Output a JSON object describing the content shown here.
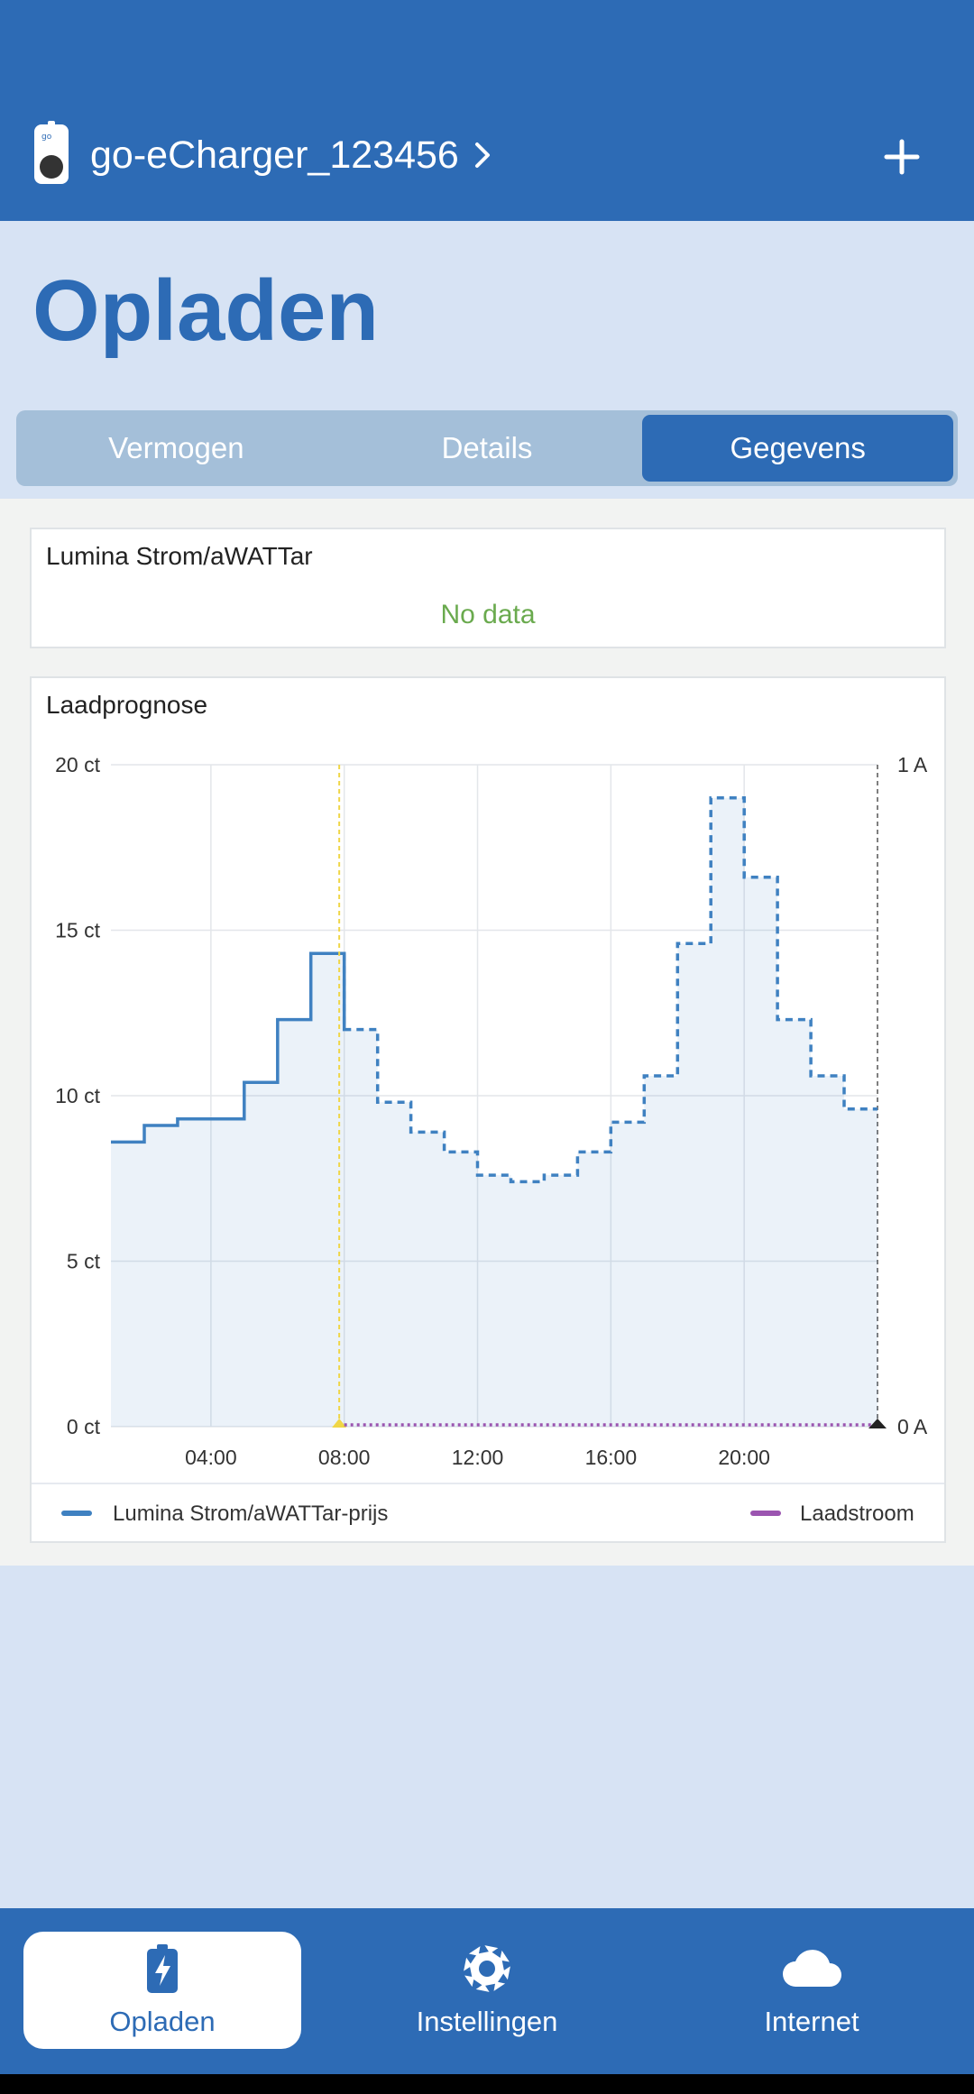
{
  "header": {
    "device_name": "go-eCharger_123456",
    "device_icon": "charger-icon",
    "add_icon": "plus-icon"
  },
  "page_title": "Opladen",
  "tabs": [
    {
      "label": "Vermogen",
      "active": false
    },
    {
      "label": "Details",
      "active": false
    },
    {
      "label": "Gegevens",
      "active": true
    }
  ],
  "price_card": {
    "title": "Lumina Strom/aWATTar",
    "status": "No data"
  },
  "forecast_card": {
    "title": "Laadprognose"
  },
  "chart_data": {
    "type": "line",
    "step": true,
    "x_tick_labels": [
      "04:00",
      "08:00",
      "12:00",
      "16:00",
      "20:00"
    ],
    "y_left": {
      "ticks": [
        "0 ct",
        "5 ct",
        "10 ct",
        "15 ct",
        "20 ct"
      ],
      "ylim": [
        0,
        20
      ],
      "unit": "ct"
    },
    "y_right": {
      "ticks": [
        "0 A",
        "1 A"
      ],
      "ylim": [
        0,
        1
      ],
      "unit": "A"
    },
    "xlim_hours": [
      1.0,
      24.0
    ],
    "current_time_hour": 7.85,
    "series": [
      {
        "name": "Lumina Strom/aWATTar-prijs",
        "color": "#3f81c1",
        "axis": "left",
        "x": [
          1,
          2,
          3,
          4,
          5,
          6,
          7,
          8,
          9,
          10,
          11,
          12,
          13,
          14,
          15,
          16,
          17,
          18,
          19,
          20,
          21,
          22,
          23,
          24
        ],
        "values": [
          8.6,
          9.1,
          9.3,
          9.3,
          10.4,
          12.3,
          14.3,
          12.0,
          9.8,
          8.9,
          8.3,
          7.6,
          7.4,
          7.6,
          8.3,
          9.2,
          10.6,
          14.6,
          19.0,
          16.6,
          12.3,
          10.6,
          9.6,
          9.6
        ],
        "solid_until_hour": 8
      },
      {
        "name": "Laadstroom",
        "color": "#9b55b0",
        "axis": "right",
        "x": [
          8,
          24
        ],
        "values": [
          0,
          0
        ]
      }
    ],
    "legend": [
      {
        "label": "Lumina Strom/aWATTar-prijs",
        "color": "#3f81c1"
      },
      {
        "label": "Laadstroom",
        "color": "#9b55b0"
      }
    ],
    "legend_placement": "bottom",
    "grid": true
  },
  "bottom_nav": [
    {
      "label": "Opladen",
      "icon": "battery-bolt-icon",
      "active": true
    },
    {
      "label": "Instellingen",
      "icon": "gear-icon",
      "active": false
    },
    {
      "label": "Internet",
      "icon": "cloud-icon",
      "active": false
    }
  ]
}
